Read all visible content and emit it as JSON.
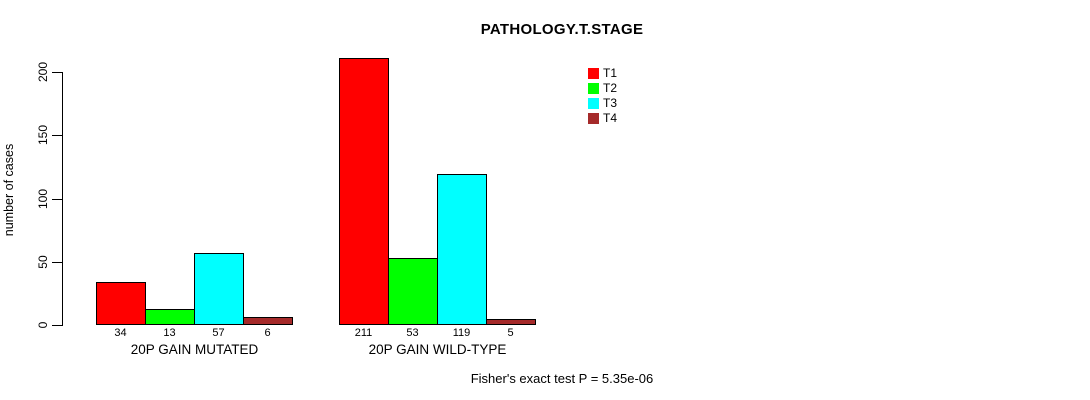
{
  "chart_data": {
    "type": "bar",
    "title": "PATHOLOGY.T.STAGE",
    "ylabel": "number of cases",
    "xlabel": "",
    "groups": [
      "20P GAIN MUTATED",
      "20P GAIN WILD-TYPE"
    ],
    "series": [
      {
        "name": "T1",
        "color": "#FF0000",
        "values": [
          34,
          211
        ]
      },
      {
        "name": "T2",
        "color": "#00FF00",
        "values": [
          13,
          53
        ]
      },
      {
        "name": "T3",
        "color": "#00FFFF",
        "values": [
          57,
          119
        ]
      },
      {
        "name": "T4",
        "color": "#A52A2A",
        "values": [
          6,
          5
        ]
      }
    ],
    "value_labels": [
      [
        "34",
        "13",
        "57",
        "6"
      ],
      [
        "211",
        "53",
        "119",
        "5"
      ]
    ],
    "y_ticks": [
      "0",
      "50",
      "100",
      "150",
      "200"
    ],
    "ylim": [
      0,
      211
    ],
    "axis_max": 200,
    "grid": false,
    "legend_position": "top-right",
    "legend_entries": [
      "T1",
      "T2",
      "T3",
      "T4"
    ],
    "bar_border_color": "#000000",
    "background_color": "#FFFFFF",
    "annotation": "Fisher's exact test P = 5.35e-06"
  }
}
